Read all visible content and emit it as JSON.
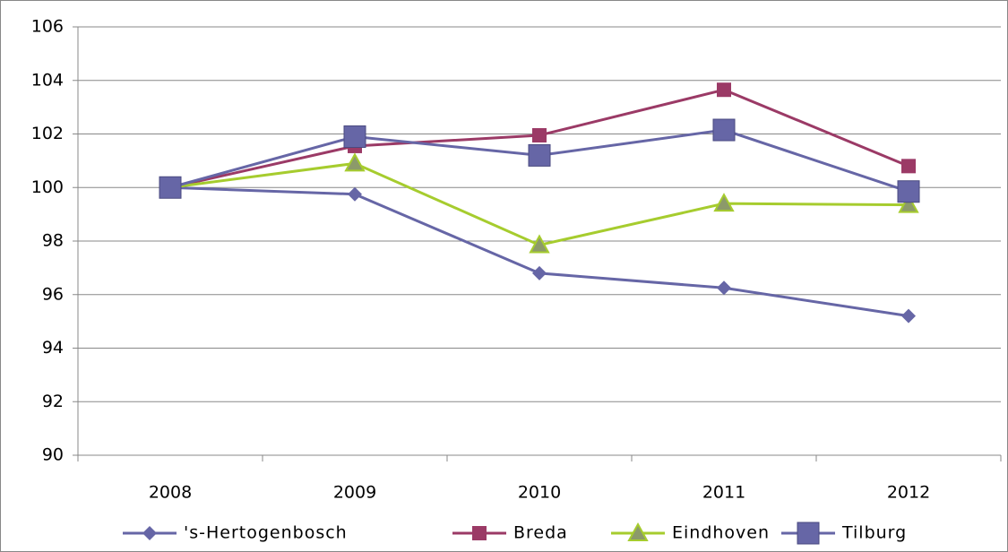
{
  "chart_data": {
    "type": "line",
    "categories": [
      "2008",
      "2009",
      "2010",
      "2011",
      "2012"
    ],
    "series": [
      {
        "name": "'s-Hertogenbosch",
        "color": "#6666a6",
        "marker": "diamond",
        "values": [
          100,
          99.75,
          96.8,
          96.25,
          95.2
        ]
      },
      {
        "name": "Breda",
        "color": "#9b3a66",
        "marker": "square",
        "values": [
          100,
          101.55,
          101.95,
          103.65,
          100.8
        ]
      },
      {
        "name": "Eindhoven",
        "color": "#a6cc2e",
        "marker": "triangle",
        "values": [
          100,
          100.9,
          97.85,
          99.4,
          99.35
        ]
      },
      {
        "name": "Tilburg",
        "color": "#6666a6",
        "marker": "big-square",
        "values": [
          100,
          101.9,
          101.2,
          102.15,
          99.85
        ]
      }
    ],
    "ylim": [
      90,
      106
    ],
    "yticks": [
      90,
      92,
      94,
      96,
      98,
      100,
      102,
      104,
      106
    ],
    "grid": true,
    "legend": "bottom"
  }
}
